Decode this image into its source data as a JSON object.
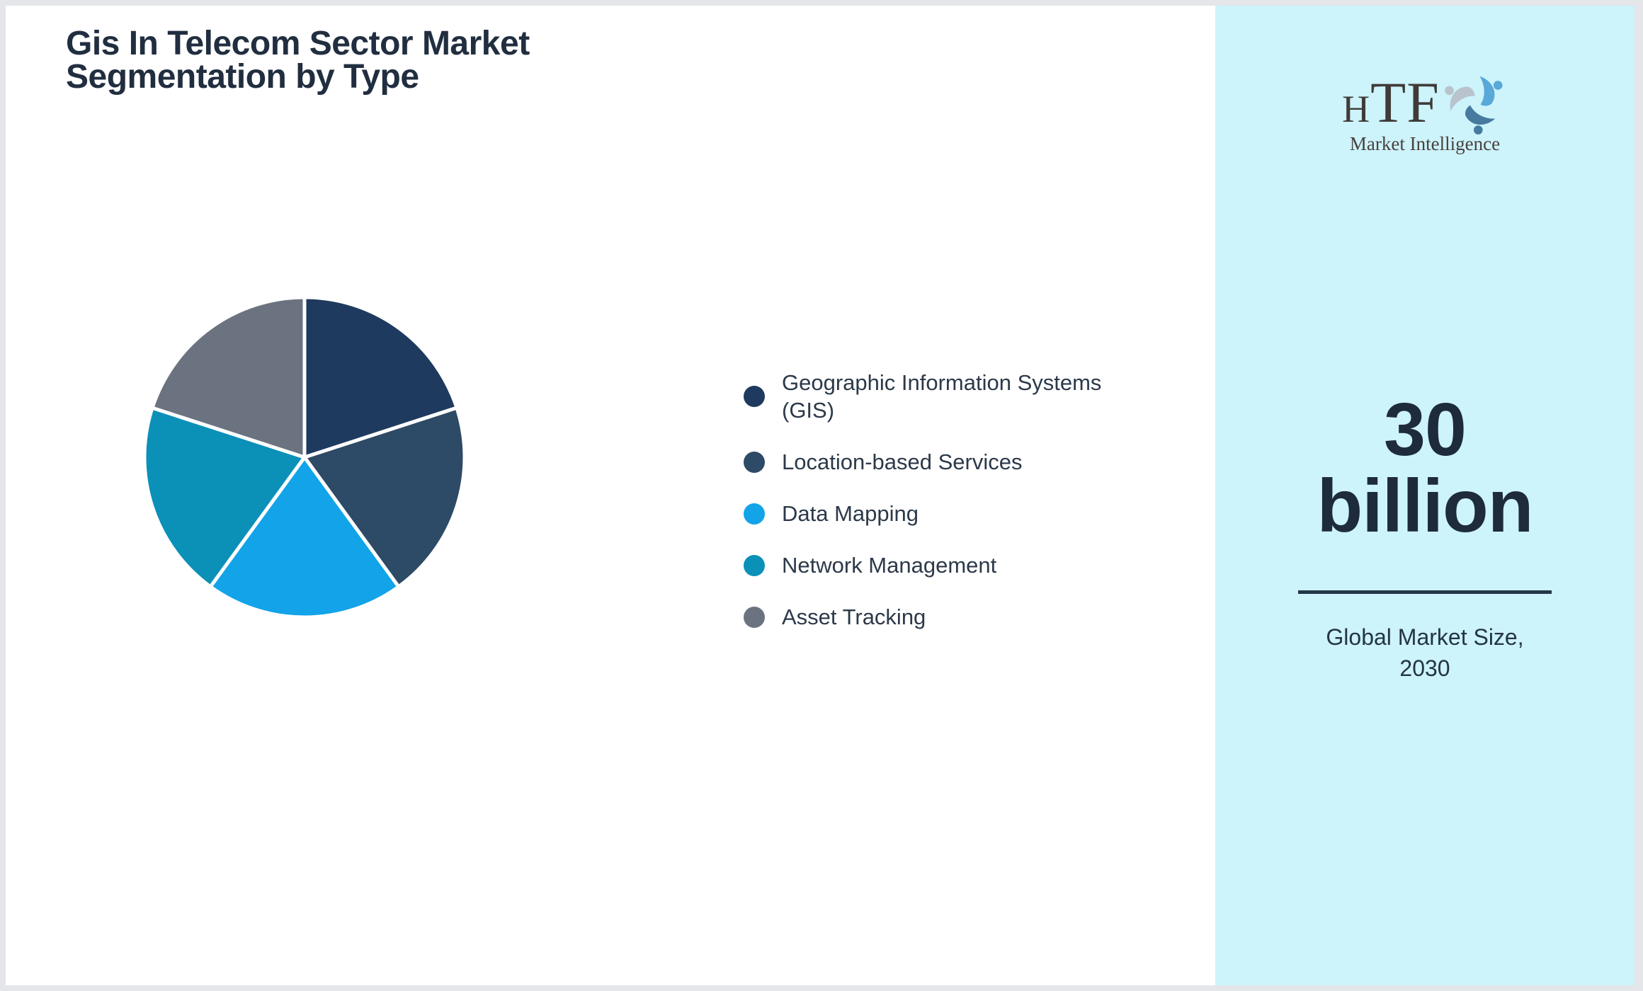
{
  "page": {
    "border_color": "#e4e6ea",
    "panel_bg": "#ffffff"
  },
  "header": {
    "title_line1": "Gis In Telecom Sector Market",
    "title_line2": "Segmentation by Type",
    "title_color": "#212e40"
  },
  "legend": {
    "text_color": "#2c3949",
    "items": [
      {
        "display": "Geographic Information Systems\n(GIS)",
        "color": "#1e3a5f"
      },
      {
        "display": "Location-based Services",
        "color": "#2d4a66"
      },
      {
        "display": "Data Mapping",
        "color": "#12a3e8"
      },
      {
        "display": "Network Management",
        "color": "#0b90b8"
      },
      {
        "display": "Asset Tracking",
        "color": "#6b7380"
      }
    ]
  },
  "sidebar": {
    "bg": "#cdf3fb",
    "logo": {
      "name_h": "H",
      "name_tf": "TF",
      "subtitle": "Market Intelligence",
      "swirl_colors": [
        "#58a8d8",
        "#b9c3cc",
        "#477a9f"
      ]
    },
    "stat": {
      "value_line1": "30",
      "value_line2": "billion",
      "label_line1": "Global Market Size,",
      "label_line2": "2030",
      "value_color": "#1e2b3c"
    }
  },
  "chart_data": {
    "type": "pie",
    "title": "Gis In Telecom Sector Market Segmentation by Type",
    "categories": [
      "Geographic Information Systems (GIS)",
      "Location-based Services",
      "Data Mapping",
      "Network Management",
      "Asset Tracking"
    ],
    "values": [
      20,
      20,
      20,
      20,
      20
    ],
    "colors": [
      "#1e3a5f",
      "#2d4a66",
      "#12a3e8",
      "#0b90b8",
      "#6b7380"
    ],
    "start_angle_deg": 0,
    "direction": "clockwise",
    "radius_px": 226,
    "slice_gap_color": "#ffffff",
    "legend_position": "right",
    "data_labels": false
  }
}
